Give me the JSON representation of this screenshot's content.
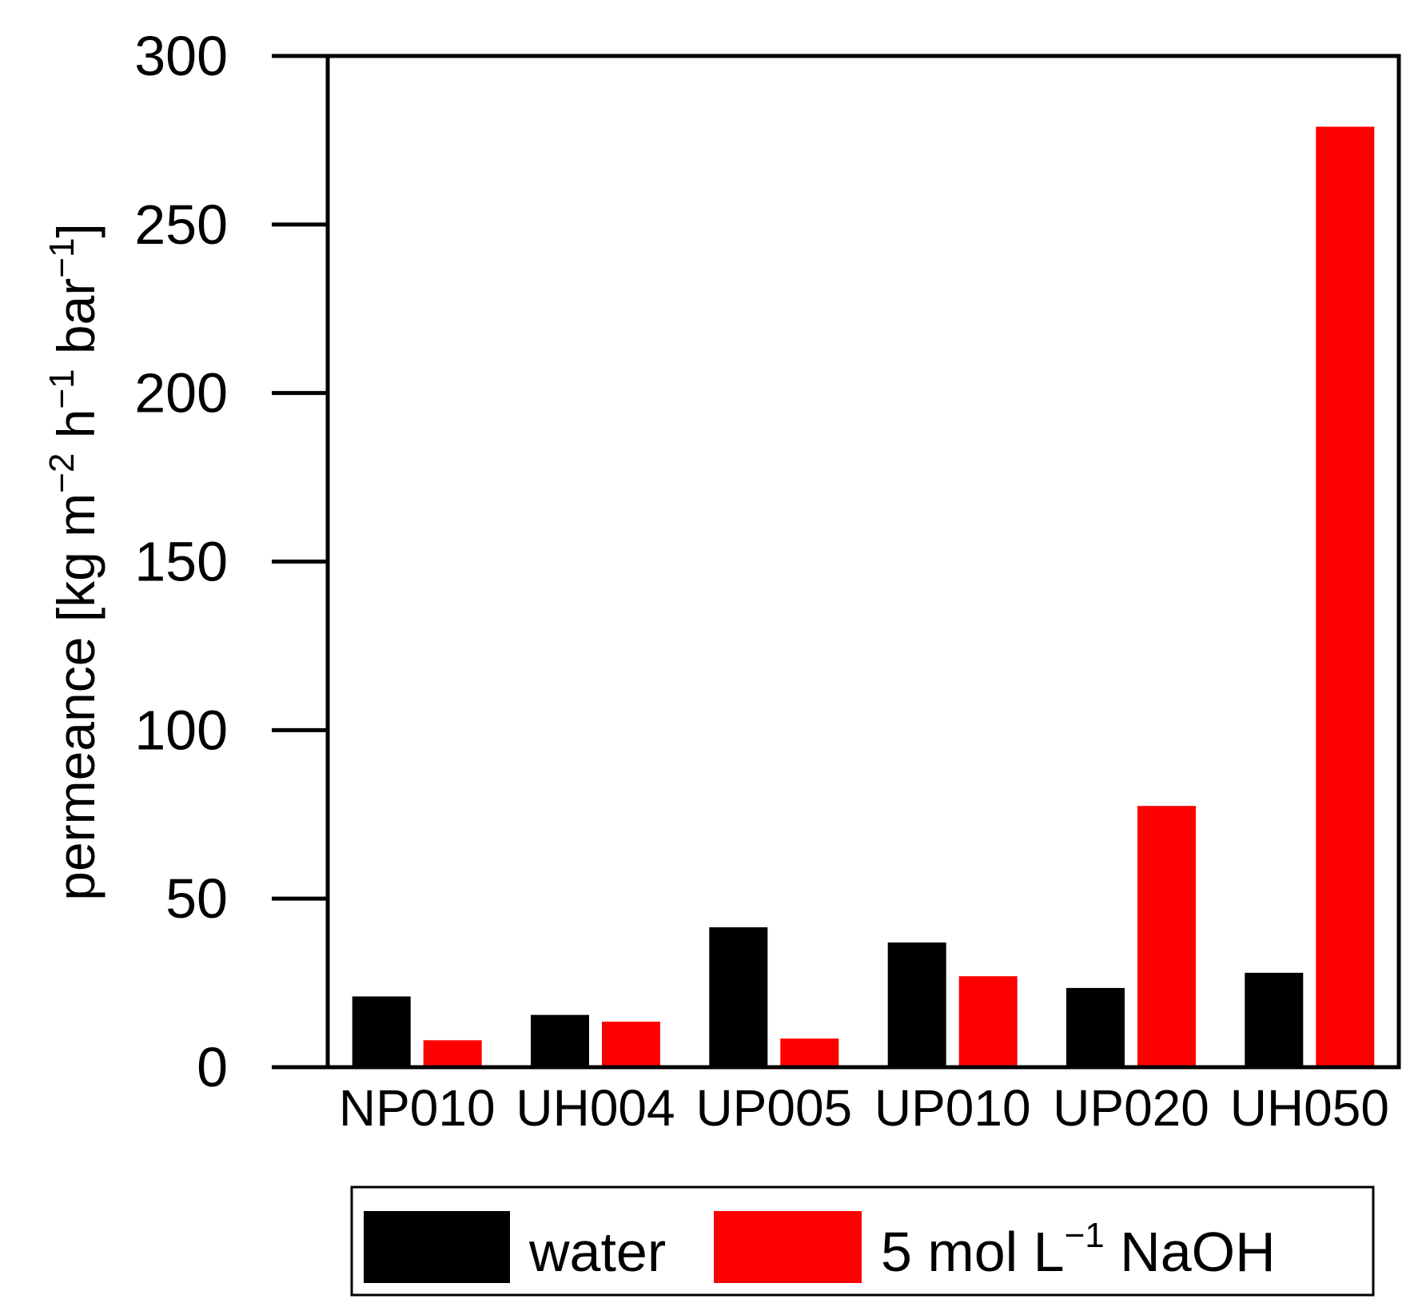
{
  "chart_data": {
    "type": "bar",
    "categories": [
      "NP010",
      "UH004",
      "UP005",
      "UP010",
      "UP020",
      "UH050"
    ],
    "series": [
      {
        "name": "water",
        "legend_main": "water",
        "legend_sup": "",
        "legend_tail": "",
        "color": "#000000",
        "values": [
          21,
          15.5,
          41.5,
          37,
          23.5,
          28
        ]
      },
      {
        "name": "5 mol L−1 NaOH",
        "legend_main": "5 mol L",
        "legend_sup": "−1",
        "legend_tail": " NaOH",
        "color": "#ff0000",
        "values": [
          8,
          13.5,
          8.5,
          27,
          77.5,
          279
        ]
      }
    ],
    "ylim": [
      0,
      300
    ],
    "yticks": [
      0,
      50,
      100,
      150,
      200,
      250,
      300
    ],
    "ylabel_parts": [
      {
        "text": "permeance [kg m",
        "sup": false
      },
      {
        "text": "−2",
        "sup": true
      },
      {
        "text": " h",
        "sup": false
      },
      {
        "text": "−1",
        "sup": true
      },
      {
        "text": " bar",
        "sup": false
      },
      {
        "text": "−1",
        "sup": true
      },
      {
        "text": "]",
        "sup": false
      }
    ],
    "legend_position": "bottom"
  }
}
